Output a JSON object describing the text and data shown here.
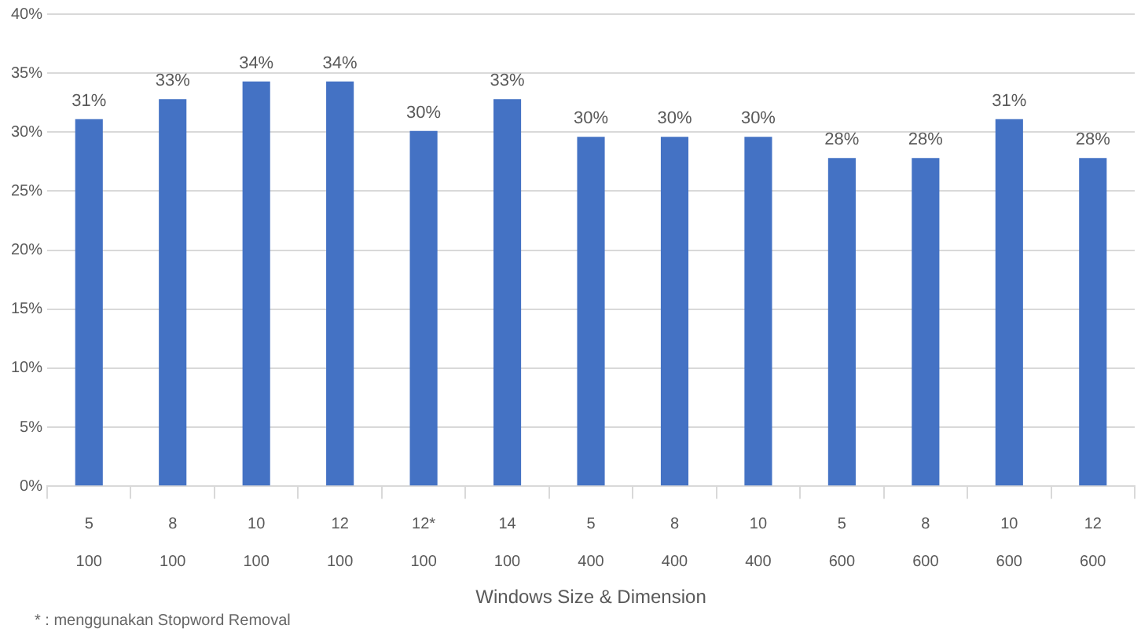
{
  "chart_data": {
    "type": "bar",
    "xlabel": "Windows Size & Dimension",
    "categories": [
      "5\n100",
      "8\n100",
      "10\n100",
      "12\n100",
      "12*\n100",
      "14\n100",
      "5\n400",
      "8\n400",
      "10\n400",
      "5\n600",
      "8\n600",
      "10\n600",
      "12\n600"
    ],
    "values": [
      31.1,
      32.8,
      34.3,
      34.3,
      30.1,
      32.8,
      29.6,
      29.6,
      29.6,
      27.8,
      27.8,
      31.1,
      27.8
    ],
    "value_labels": [
      "31%",
      "33%",
      "34%",
      "34%",
      "30%",
      "33%",
      "30%",
      "30%",
      "30%",
      "28%",
      "28%",
      "31%",
      "28%"
    ],
    "color": "#4472c4",
    "ylim": [
      0,
      40
    ],
    "yticks": [
      {
        "value": 0,
        "label": "0%"
      },
      {
        "value": 5,
        "label": "5%"
      },
      {
        "value": 10,
        "label": "10%"
      },
      {
        "value": 15,
        "label": "15%"
      },
      {
        "value": 20,
        "label": "20%"
      },
      {
        "value": 25,
        "label": "25%"
      },
      {
        "value": 30,
        "label": "30%"
      },
      {
        "value": 35,
        "label": "35%"
      },
      {
        "value": 40,
        "label": "40%"
      }
    ],
    "grid": "y",
    "legend": false,
    "annotations": [
      "* : menggunakan Stopword Removal"
    ]
  }
}
